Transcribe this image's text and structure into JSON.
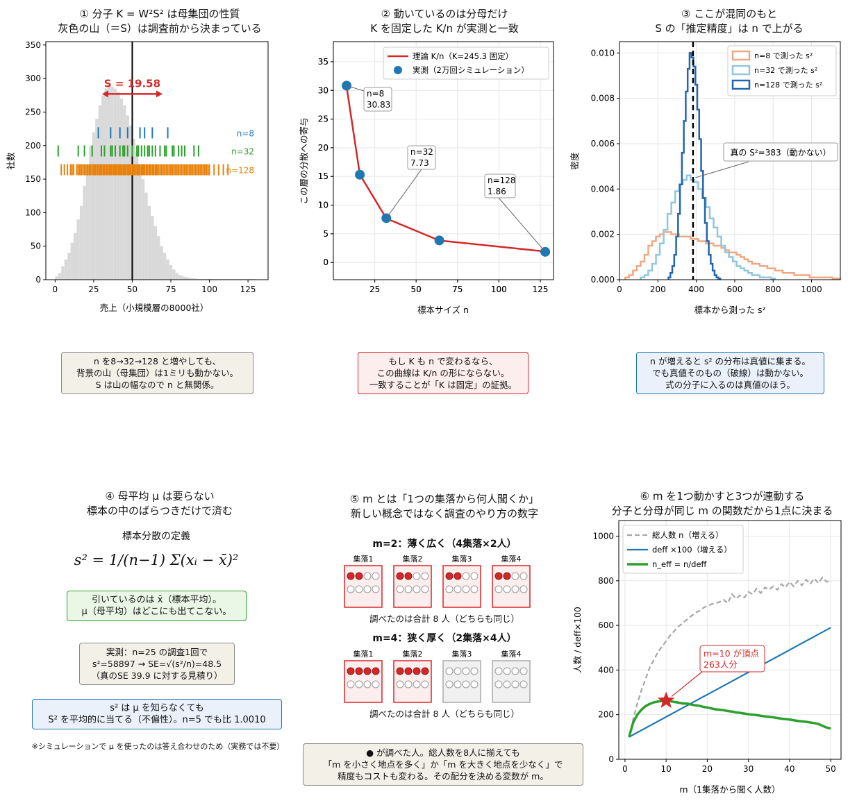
{
  "panels": {
    "p1": {
      "title_l1": "① 分子 K = W²S² は母集団の性質",
      "title_l2": "灰色の山（＝S）は調査前から決まっている",
      "s_label": "S = 19.58",
      "note_l1": "n を8→32→128 と増やしても、",
      "note_l2": "背景の山（母集団）は1ミリも動かない。",
      "note_l3": "S は山の幅なので n と無関係。"
    },
    "p2": {
      "title_l1": "② 動いているのは分母だけ",
      "title_l2": "K を固定した K/n が実測と一致",
      "ann": [
        "n=8",
        "30.83",
        "n=32",
        "7.73",
        "n=128",
        "1.86"
      ],
      "note_l1": "もし K も n で変わるなら、",
      "note_l2": "この曲線は K/n の形にならない。",
      "note_l3": "一致することが「K は固定」の証拠。"
    },
    "p3": {
      "title_l1": "③ ここが混同のもと",
      "title_l2": "S の「推定精度」は n で上がる",
      "true_label": "真の S²=383（動かない）",
      "note_l1": "n が増えると s² の分布は真値に集まる。",
      "note_l2": "でも真値そのもの（破線）は動かない。",
      "note_l3": "式の分子に入るのは真値のほう。"
    },
    "p4": {
      "title_l1": "④ 母平均 μ は要らない",
      "title_l2": "標本の中のばらつきだけで済む",
      "def_label": "標本分散の定義",
      "formula": "s² = 1/(n−1) Σ(xᵢ − x̄)²",
      "g_l1": "引いているのは x̄（標本平均）。",
      "g_l2": "μ（母平均）はどこにも出てこない。",
      "m_l1": "実測：n=25 の調査1回で",
      "m_l2": "s²=58897 → SE=√(s²/n)=48.5",
      "m_l3": "（真のSE 39.9 に対する見積り）",
      "b_l1": "s² は μ を知らなくても",
      "b_l2": "S² を平均的に当てる（不偏性）。n=5 でも比 1.0010",
      "footnote": "※シミュレーションで μ を使ったのは答え合わせのため（実務では不要）"
    },
    "p5": {
      "title_l1": "⑤ m とは「1つの集落から何人聞くか」",
      "title_l2": "新しい概念ではなく調査のやり方の数字",
      "case1_title": "m=2：薄く広く（4集落×2人）",
      "case2_title": "m=4：狭く厚く（2集落×4人）",
      "clusters": [
        "集落1",
        "集落2",
        "集落3",
        "集落4"
      ],
      "total_note": "調べたのは合計 8 人（どちらも同じ）",
      "note_l1": "● が調べた人。総人数を8人に揃えても",
      "note_l2": "「m を小さく地点を多く」か「m を大きく地点を少なく」で",
      "note_l3": "精度もコストも変わる。その配分を決める変数が m。"
    },
    "p6": {
      "title_l1": "⑥ m を1つ動かすと3つが連動する",
      "title_l2": "分子と分母が同じ m の関数だから1点に決まる",
      "peak_l1": "m=10 が頂点",
      "peak_l2": "263人分"
    }
  },
  "colors": {
    "gray_hist": "#d9d9d9",
    "blue": "#1f77b4",
    "green": "#2ca02c",
    "orange": "#e8820c",
    "red": "#d62728",
    "light_orange": "#f0a882",
    "light_blue": "#92c5de",
    "dark_blue": "#2166ac",
    "dash_gray": "#a6a6a6"
  },
  "chart_data": [
    {
      "type": "bar",
      "title": "① 分子 K = W²S² は母集団の性質 / 灰色の山（＝S）は調査前から決まっている",
      "xlabel": "売上（小規模層の8000社）",
      "ylabel": "社数",
      "xlim": [
        -6,
        138
      ],
      "ylim": [
        0,
        355
      ],
      "xticks": [
        0,
        25,
        50,
        75,
        100,
        125
      ],
      "yticks": [
        0,
        50,
        100,
        150,
        200,
        250,
        300,
        350
      ],
      "bin_start": 0,
      "bin_width": 2,
      "values": [
        5,
        10,
        20,
        30,
        40,
        55,
        70,
        90,
        110,
        140,
        170,
        200,
        220,
        240,
        260,
        275,
        285,
        290,
        288,
        285,
        280,
        270,
        260,
        245,
        230,
        210,
        190,
        170,
        150,
        130,
        110,
        95,
        80,
        65,
        50,
        40,
        30,
        22,
        15,
        10,
        7,
        5,
        4,
        3,
        2,
        2,
        1,
        1,
        1,
        1,
        1,
        1,
        1,
        1,
        1,
        1,
        1,
        1,
        1,
        1,
        1,
        1,
        1,
        1,
        1
      ],
      "vline": 50,
      "S_arrow": [
        30.4,
        69.6
      ],
      "annotation": "S = 19.58",
      "rug": [
        {
          "name": "n=8",
          "y": 219,
          "x": [
            28,
            36,
            42,
            47,
            55,
            58,
            63,
            73
          ]
        },
        {
          "name": "n=32",
          "y": 192,
          "x": [
            2,
            15,
            19,
            24,
            30,
            32,
            36,
            37,
            39,
            42,
            44,
            45,
            47,
            50,
            53,
            54,
            56,
            58,
            60,
            61,
            63,
            65,
            68,
            71,
            72,
            76,
            77,
            80,
            82,
            84,
            90,
            93
          ]
        },
        {
          "name": "n=128",
          "y": 164,
          "x": [
            4,
            6,
            8,
            10,
            11,
            12,
            14,
            15,
            16,
            17,
            18,
            19,
            20,
            21,
            22,
            22.5,
            23,
            24,
            25,
            25.5,
            26,
            27,
            27.5,
            28,
            29,
            29.5,
            30,
            31,
            31.5,
            32,
            33,
            33.5,
            34,
            35,
            35.5,
            36,
            36.5,
            37,
            38,
            38.5,
            39,
            39.5,
            40,
            41,
            41.5,
            42,
            42.5,
            43,
            44,
            44.5,
            45,
            45.5,
            46,
            47,
            47.5,
            48,
            48.5,
            49,
            50,
            50.5,
            51,
            51.5,
            52,
            53,
            53.5,
            54,
            54.5,
            55,
            56,
            56.5,
            57,
            57.5,
            58,
            59,
            59.5,
            60,
            61,
            61.5,
            62,
            63,
            63.5,
            64,
            65,
            65.5,
            66,
            67,
            68,
            69,
            70,
            71,
            72,
            73,
            74,
            75,
            76,
            77,
            78,
            79,
            80,
            81,
            82,
            83,
            84,
            85,
            86,
            87,
            88,
            89,
            90,
            91,
            92,
            93,
            94,
            95,
            96,
            97,
            98,
            99,
            100,
            103,
            106,
            109,
            112
          ]
        }
      ]
    },
    {
      "type": "line",
      "title": "② 動いているのは分母だけ / K を固定した K/n が実測と一致",
      "xlabel": "標本サイズ n",
      "ylabel": "この層の分散への寄与",
      "xlim": [
        0,
        133
      ],
      "ylim": [
        -3,
        38.5
      ],
      "xticks": [
        25,
        50,
        75,
        100,
        125
      ],
      "yticks": [
        0,
        5,
        10,
        15,
        20,
        25,
        30,
        35
      ],
      "series": [
        {
          "name": "理論 K/n（K=245.3 固定）",
          "x": [
            8,
            16,
            32,
            64,
            128
          ],
          "y": [
            30.66,
            15.33,
            7.67,
            3.83,
            1.92
          ]
        },
        {
          "name": "実測（2万回シミュレーション）",
          "x": [
            8,
            16,
            32,
            64,
            128
          ],
          "y": [
            30.83,
            15.3,
            7.73,
            3.85,
            1.86
          ]
        }
      ],
      "labels": [
        "n=8 30.83",
        "n=32 7.73",
        "n=128 1.86"
      ]
    },
    {
      "type": "line",
      "title": "③ ここが混同のもと / S の「推定精度」は n で上がる",
      "xlabel": "標本から測った s²",
      "ylabel": "密度",
      "xlim": [
        0,
        1150
      ],
      "ylim": [
        0,
        0.0105
      ],
      "xticks": [
        0,
        200,
        400,
        600,
        800,
        1000
      ],
      "yticks": [
        0.0,
        0.002,
        0.004,
        0.006,
        0.008,
        0.01
      ],
      "true_value": 383,
      "bin_width": 20,
      "series": [
        {
          "name": "n=8 で測った s²",
          "x": [
            40,
            60,
            80,
            100,
            120,
            140,
            160,
            180,
            200,
            220,
            240,
            260,
            280,
            300,
            320,
            340,
            360,
            380,
            400,
            420,
            440,
            460,
            480,
            500,
            520,
            540,
            560,
            580,
            600,
            620,
            640,
            660,
            680,
            700,
            720,
            740,
            760,
            780,
            800,
            820,
            840,
            860,
            880,
            900,
            920,
            940,
            960,
            980,
            1000,
            1020,
            1040,
            1060,
            1080,
            1100,
            1120,
            1140
          ],
          "y": [
            0.0001,
            0.0002,
            0.0004,
            0.0006,
            0.0008,
            0.0011,
            0.0015,
            0.0017,
            0.0019,
            0.002,
            0.0021,
            0.0021,
            0.002,
            0.002,
            0.0019,
            0.0019,
            0.0019,
            0.0018,
            0.0018,
            0.0017,
            0.0017,
            0.0016,
            0.0016,
            0.0015,
            0.0015,
            0.0014,
            0.0013,
            0.0012,
            0.0012,
            0.0011,
            0.001,
            0.0009,
            0.0008,
            0.0007,
            0.0007,
            0.0006,
            0.0006,
            0.0005,
            0.0005,
            0.0004,
            0.0004,
            0.0003,
            0.0003,
            0.0003,
            0.0002,
            0.0002,
            0.0002,
            0.0002,
            0.0001,
            0.0001,
            0.0001,
            0.0001,
            0.0001,
            0.0001,
            5e-05,
            5e-05
          ]
        },
        {
          "name": "n=32 で測った s²",
          "x": [
            120,
            140,
            160,
            180,
            200,
            220,
            240,
            260,
            280,
            300,
            320,
            340,
            360,
            380,
            400,
            420,
            440,
            460,
            480,
            500,
            520,
            540,
            560,
            580,
            600,
            620,
            640,
            660,
            680,
            700,
            720,
            740,
            760,
            780,
            800
          ],
          "y": [
            0.0001,
            0.0002,
            0.0004,
            0.0007,
            0.0011,
            0.0016,
            0.0022,
            0.0029,
            0.0034,
            0.0039,
            0.0042,
            0.0044,
            0.0046,
            0.0044,
            0.0043,
            0.004,
            0.0036,
            0.0032,
            0.0027,
            0.0023,
            0.0019,
            0.0015,
            0.0012,
            0.001,
            0.0008,
            0.0006,
            0.0005,
            0.0004,
            0.0003,
            0.0002,
            0.0002,
            0.0001,
            0.0001,
            0.0001,
            5e-05
          ]
        },
        {
          "name": "n=128 で測った s²",
          "x": [
            260,
            270,
            280,
            290,
            300,
            310,
            320,
            330,
            340,
            350,
            360,
            370,
            380,
            390,
            400,
            410,
            420,
            430,
            440,
            450,
            460,
            470,
            480,
            490,
            500,
            510,
            520
          ],
          "y": [
            0.0001,
            0.0003,
            0.0006,
            0.0011,
            0.0019,
            0.0029,
            0.0042,
            0.0056,
            0.007,
            0.0083,
            0.0093,
            0.01,
            0.0098,
            0.0094,
            0.0086,
            0.0075,
            0.0062,
            0.0048,
            0.0036,
            0.0025,
            0.0017,
            0.0011,
            0.0007,
            0.0004,
            0.0002,
            0.0001,
            5e-05
          ]
        }
      ],
      "annotation": "真の S²=383（動かない）"
    },
    {
      "type": "line",
      "title": "⑥ m を1つ動かすと3つが連動する / 分子と分母が同じ m の関数だから1点に決まる",
      "xlabel": "m（1集落から聞く人数）",
      "ylabel": "人数 / deff×100",
      "xlim": [
        -1.5,
        52.5
      ],
      "ylim": [
        0,
        1070
      ],
      "xticks": [
        0,
        10,
        20,
        30,
        40,
        50
      ],
      "yticks": [
        0,
        200,
        400,
        600,
        800,
        1000
      ],
      "series": [
        {
          "name": "総人数 n（増える）",
          "x": [
            1,
            2,
            3,
            4,
            5,
            6,
            7,
            8,
            9,
            10,
            11,
            12,
            13,
            14,
            15,
            16,
            17,
            18,
            19,
            20,
            21,
            22,
            23,
            24,
            25,
            26,
            27,
            28,
            29,
            30,
            31,
            32,
            33,
            34,
            35,
            36,
            37,
            38,
            39,
            40,
            41,
            42,
            43,
            44,
            45,
            46,
            47,
            48,
            49,
            50
          ],
          "y": [
            100,
            180,
            250,
            310,
            360,
            410,
            445,
            480,
            505,
            530,
            555,
            575,
            595,
            610,
            625,
            640,
            655,
            665,
            678,
            688,
            695,
            700,
            705,
            715,
            700,
            740,
            720,
            735,
            725,
            750,
            740,
            765,
            745,
            770,
            760,
            775,
            760,
            785,
            770,
            795,
            775,
            800,
            780,
            805,
            785,
            810,
            790,
            815,
            795,
            800
          ]
        },
        {
          "name": "deff ×100（増える）",
          "x": [
            1,
            50
          ],
          "y": [
            100,
            590
          ]
        },
        {
          "name": "n_eff = n/deff",
          "x": [
            1,
            2,
            3,
            4,
            5,
            6,
            7,
            8,
            9,
            10,
            11,
            12,
            13,
            14,
            15,
            16,
            17,
            18,
            19,
            20,
            21,
            22,
            23,
            24,
            25,
            26,
            27,
            28,
            29,
            30,
            31,
            32,
            33,
            34,
            35,
            36,
            37,
            38,
            39,
            40,
            41,
            42,
            43,
            44,
            45,
            46,
            47,
            48,
            49,
            50
          ],
          "y": [
            100,
            165,
            200,
            222,
            238,
            248,
            255,
            259,
            261,
            263,
            260,
            257,
            254,
            250,
            250,
            246,
            242,
            240,
            235,
            232,
            228,
            224,
            222,
            220,
            216,
            214,
            210,
            208,
            205,
            202,
            200,
            198,
            195,
            192,
            190,
            188,
            185,
            182,
            180,
            178,
            175,
            172,
            170,
            168,
            165,
            162,
            158,
            150,
            142,
            138
          ]
        }
      ],
      "peak": {
        "m": 10,
        "value": 263
      },
      "annotation": "m=10 が頂点 263人分"
    }
  ]
}
